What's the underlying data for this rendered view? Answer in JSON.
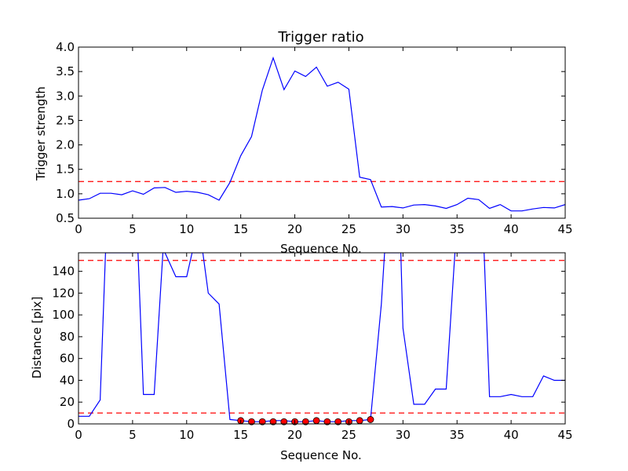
{
  "chart_data": [
    {
      "type": "line",
      "title": "Trigger ratio",
      "xlabel": "Sequence No.",
      "ylabel": "Trigger strength",
      "xlim": [
        0,
        45
      ],
      "ylim": [
        0.5,
        4.0
      ],
      "xticks": [
        0,
        5,
        10,
        15,
        20,
        25,
        30,
        35,
        40,
        45
      ],
      "yticks": [
        0.5,
        1.0,
        1.5,
        2.0,
        2.5,
        3.0,
        3.5,
        4.0
      ],
      "grid": false,
      "threshold_lines": [
        1.25
      ],
      "series": [
        {
          "color": "#0000ff",
          "x": [
            0,
            1,
            2,
            3,
            4,
            5,
            6,
            7,
            8,
            9,
            10,
            11,
            12,
            13,
            14,
            15,
            16,
            17,
            18,
            19,
            20,
            21,
            22,
            23,
            24,
            25,
            26,
            27,
            28,
            29,
            30,
            31,
            32,
            33,
            34,
            35,
            36,
            37,
            38,
            39,
            40,
            41,
            42,
            43,
            44,
            45
          ],
          "y": [
            0.87,
            0.9,
            1.01,
            1.01,
            0.98,
            1.06,
            0.99,
            1.12,
            1.13,
            1.03,
            1.05,
            1.03,
            0.98,
            0.87,
            1.23,
            1.78,
            2.17,
            3.12,
            3.78,
            3.13,
            3.51,
            3.4,
            3.59,
            3.2,
            3.28,
            3.14,
            1.34,
            1.29,
            0.73,
            0.74,
            0.71,
            0.77,
            0.78,
            0.75,
            0.7,
            0.78,
            0.91,
            0.88,
            0.7,
            0.78,
            0.65,
            0.65,
            0.69,
            0.72,
            0.71,
            0.78
          ]
        }
      ]
    },
    {
      "type": "line",
      "title": "",
      "xlabel": "Sequence No.",
      "ylabel": "Distance [pix]",
      "xlim": [
        0,
        45
      ],
      "ylim": [
        0,
        157
      ],
      "xticks": [
        0,
        5,
        10,
        15,
        20,
        25,
        30,
        35,
        40,
        45
      ],
      "yticks": [
        0,
        20,
        40,
        60,
        80,
        100,
        120,
        140
      ],
      "grid": false,
      "threshold_lines": [
        150,
        10
      ],
      "series": [
        {
          "color": "#0000ff",
          "x": [
            0,
            1,
            2,
            2.5,
            5.5,
            6,
            7,
            7.8,
            8,
            9,
            10,
            10.5,
            11.5,
            12,
            13,
            14,
            15,
            16,
            17,
            18,
            19,
            20,
            21,
            22,
            23,
            24,
            25,
            26,
            27,
            28,
            28.3,
            29.8,
            30,
            31,
            32,
            33,
            34,
            34.8,
            37.5,
            38,
            39,
            40,
            41,
            42,
            43,
            44,
            45
          ],
          "y": [
            7,
            7,
            22,
            157,
            157,
            27,
            27,
            157,
            157,
            135,
            135,
            157,
            157,
            120,
            110,
            4,
            3,
            2,
            2,
            3,
            3,
            2,
            2,
            3,
            2,
            2,
            3,
            3,
            4,
            110,
            157,
            157,
            88,
            18,
            18,
            32,
            32,
            157,
            157,
            25,
            25,
            27,
            25,
            25,
            44,
            40,
            40
          ]
        },
        {
          "color": "#ff0000",
          "marker": "circle",
          "x": [
            15,
            16,
            17,
            18,
            19,
            20,
            21,
            22,
            23,
            24,
            25,
            26,
            27
          ],
          "y": [
            3,
            2,
            2,
            2,
            2,
            2,
            2,
            3,
            2,
            2,
            2,
            3,
            4
          ]
        }
      ]
    }
  ]
}
